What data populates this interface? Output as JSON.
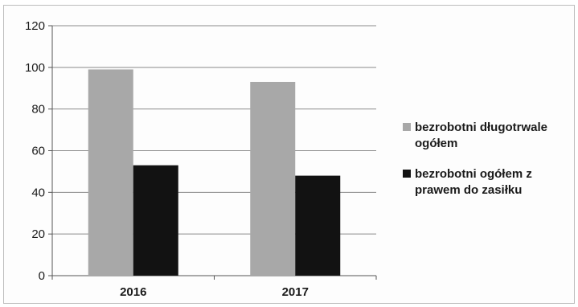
{
  "chart_data": {
    "type": "bar",
    "categories": [
      "2016",
      "2017"
    ],
    "series": [
      {
        "name": "bezrobotni długotrwale ogółem",
        "values": [
          99,
          93
        ],
        "color": "#a8a8a8"
      },
      {
        "name": "bezrobotni ogółem z prawem do zasiłku",
        "values": [
          53,
          48
        ],
        "color": "#121212"
      }
    ],
    "title": "",
    "xlabel": "",
    "ylabel": "",
    "ylim": [
      0,
      120
    ],
    "yticks": [
      0,
      20,
      40,
      60,
      80,
      100,
      120
    ],
    "grid": true,
    "legend_position": "right",
    "legend": [
      {
        "lines": [
          "bezrobotni długotrwale",
          "ogółem"
        ]
      },
      {
        "lines": [
          "bezrobotni ogółem z",
          "prawem do zasiłku"
        ]
      }
    ]
  }
}
